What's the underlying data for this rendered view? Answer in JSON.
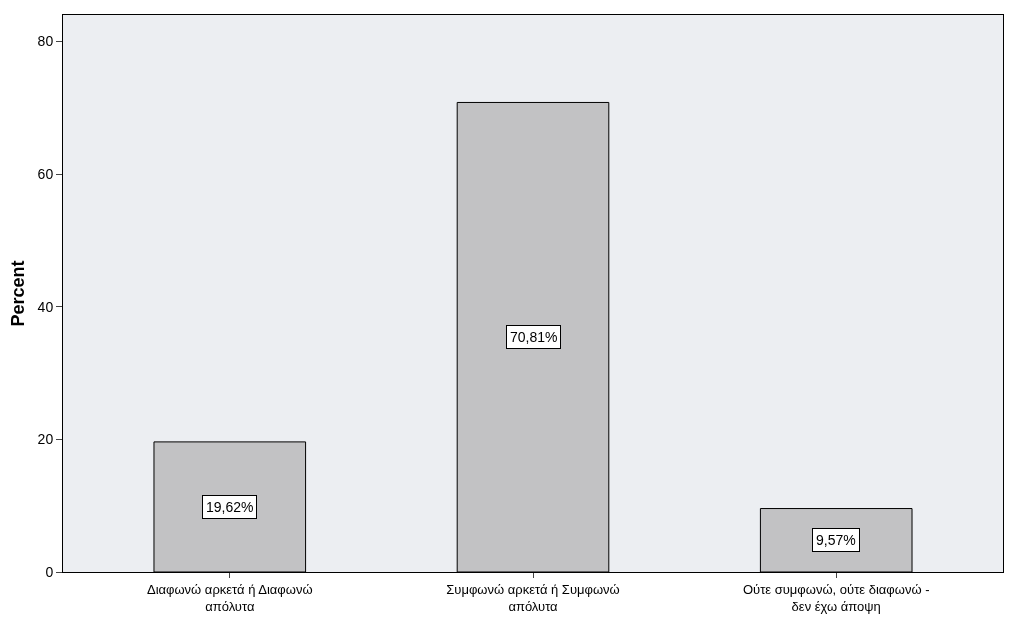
{
  "chart_data": {
    "type": "bar",
    "ylabel": "Percent",
    "categories": [
      "Διαφωνώ αρκετά ή Διαφωνώ\nαπόλυτα",
      "Συμφωνώ αρκετά ή Συμφωνώ\nαπόλυτα",
      "Ούτε συμφωνώ, ούτε διαφωνώ -\nδεν έχω άποψη"
    ],
    "values": [
      19.62,
      70.81,
      9.57
    ],
    "value_labels": [
      "19,62%",
      "70,81%",
      "9,57%"
    ],
    "color": "#c2c2c4",
    "ylim": [
      0,
      84
    ],
    "yticks": [
      0,
      20,
      40,
      60,
      80
    ],
    "grid": false
  }
}
